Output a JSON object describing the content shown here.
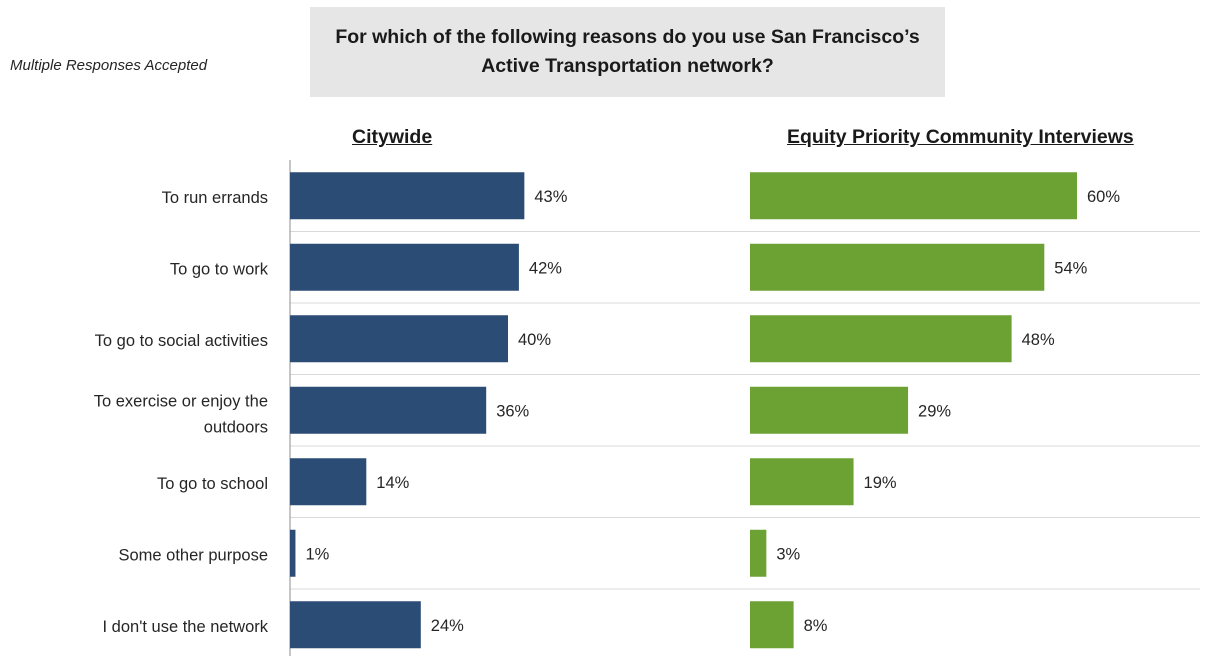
{
  "note": "Multiple Responses Accepted",
  "chart_data": {
    "type": "bar",
    "title": "For which of the following reasons do you use San Francisco’s Active Transportation network?",
    "orientation": "horizontal",
    "categories": [
      "To run errands",
      "To go to work",
      "To go to social activities",
      "To exercise or enjoy the outdoors",
      "To go to school",
      "Some other purpose",
      "I don't use the network"
    ],
    "series": [
      {
        "name": "Citywide",
        "values": [
          43,
          42,
          40,
          36,
          14,
          1,
          24
        ],
        "color": "#2b4c74"
      },
      {
        "name": "Equity Priority Community Interviews",
        "values": [
          60,
          54,
          48,
          29,
          19,
          3,
          8
        ],
        "color": "#6ca133"
      }
    ],
    "value_suffix": "%",
    "xlim": [
      0,
      100
    ],
    "grid": true,
    "legend": "none"
  }
}
